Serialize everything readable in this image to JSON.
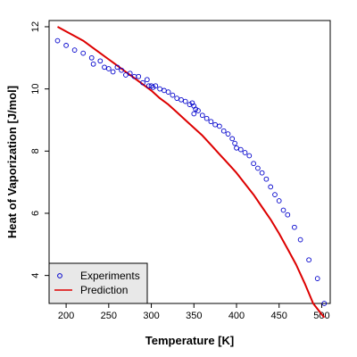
{
  "chart_data": {
    "type": "scatter",
    "title": "",
    "xlabel": "Temperature [K]",
    "ylabel": "Heat of Vaporization [J/mol]",
    "xlim": [
      180,
      510
    ],
    "ylim": [
      3.1,
      12.2
    ],
    "xticks": [
      200,
      250,
      300,
      350,
      400,
      450,
      500
    ],
    "yticks": [
      4,
      6,
      8,
      10,
      12
    ],
    "grid": false,
    "legend_position": "bottom-left",
    "series": [
      {
        "name": "Experiments",
        "kind": "points",
        "marker": "o",
        "color": "#0000cc",
        "x": [
          190,
          200,
          210,
          220,
          230,
          232,
          240,
          245,
          250,
          255,
          260,
          265,
          270,
          275,
          280,
          285,
          290,
          295,
          297,
          300,
          302,
          305,
          310,
          315,
          320,
          325,
          330,
          335,
          340,
          345,
          348,
          350,
          350,
          352,
          355,
          360,
          365,
          370,
          375,
          380,
          385,
          390,
          395,
          398,
          400,
          405,
          410,
          415,
          420,
          425,
          430,
          435,
          440,
          445,
          450,
          455,
          460,
          468,
          475,
          485,
          495,
          503
        ],
        "y": [
          11.55,
          11.4,
          11.25,
          11.15,
          11.0,
          10.8,
          10.9,
          10.7,
          10.65,
          10.55,
          10.7,
          10.6,
          10.45,
          10.5,
          10.4,
          10.4,
          10.2,
          10.3,
          10.1,
          10.1,
          10.05,
          10.1,
          10.0,
          9.95,
          9.9,
          9.8,
          9.7,
          9.65,
          9.6,
          9.5,
          9.55,
          9.45,
          9.2,
          9.35,
          9.3,
          9.15,
          9.05,
          8.95,
          8.85,
          8.8,
          8.65,
          8.55,
          8.4,
          8.25,
          8.1,
          8.05,
          7.95,
          7.85,
          7.6,
          7.45,
          7.3,
          7.1,
          6.85,
          6.6,
          6.4,
          6.1,
          5.95,
          5.55,
          5.15,
          4.5,
          3.9,
          3.1
        ]
      },
      {
        "name": "Prediction",
        "kind": "line",
        "color": "#dd0000",
        "x": [
          190,
          200,
          210,
          220,
          230,
          240,
          250,
          260,
          270,
          280,
          290,
          300,
          310,
          320,
          330,
          340,
          350,
          360,
          370,
          380,
          390,
          400,
          410,
          420,
          430,
          440,
          450,
          460,
          470,
          480,
          490,
          500,
          503
        ],
        "y": [
          12.0,
          11.85,
          11.7,
          11.55,
          11.35,
          11.15,
          10.95,
          10.75,
          10.55,
          10.35,
          10.15,
          9.95,
          9.7,
          9.5,
          9.25,
          9.0,
          8.75,
          8.5,
          8.2,
          7.9,
          7.6,
          7.3,
          6.95,
          6.6,
          6.2,
          5.8,
          5.35,
          4.85,
          4.35,
          3.75,
          3.1,
          2.75,
          2.65
        ]
      }
    ]
  }
}
